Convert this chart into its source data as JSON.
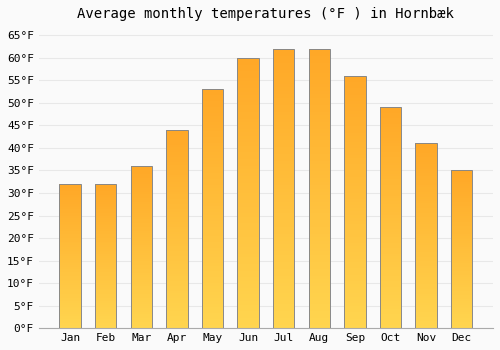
{
  "title": "Average monthly temperatures (°F ) in Hornbæk",
  "months": [
    "Jan",
    "Feb",
    "Mar",
    "Apr",
    "May",
    "Jun",
    "Jul",
    "Aug",
    "Sep",
    "Oct",
    "Nov",
    "Dec"
  ],
  "values": [
    32,
    32,
    36,
    44,
    53,
    60,
    62,
    62,
    56,
    49,
    41,
    35
  ],
  "bar_color": "#FFA726",
  "bar_color_light": "#FFD54F",
  "bar_edge_color": "#888888",
  "background_color": "#FAFAFA",
  "grid_color": "#E8E8E8",
  "ylim": [
    0,
    67
  ],
  "yticks": [
    0,
    5,
    10,
    15,
    20,
    25,
    30,
    35,
    40,
    45,
    50,
    55,
    60,
    65
  ],
  "ytick_labels": [
    "0°F",
    "5°F",
    "10°F",
    "15°F",
    "20°F",
    "25°F",
    "30°F",
    "35°F",
    "40°F",
    "45°F",
    "50°F",
    "55°F",
    "60°F",
    "65°F"
  ],
  "title_fontsize": 10,
  "tick_fontsize": 8,
  "bar_width": 0.6,
  "figsize": [
    5.0,
    3.5
  ],
  "dpi": 100
}
